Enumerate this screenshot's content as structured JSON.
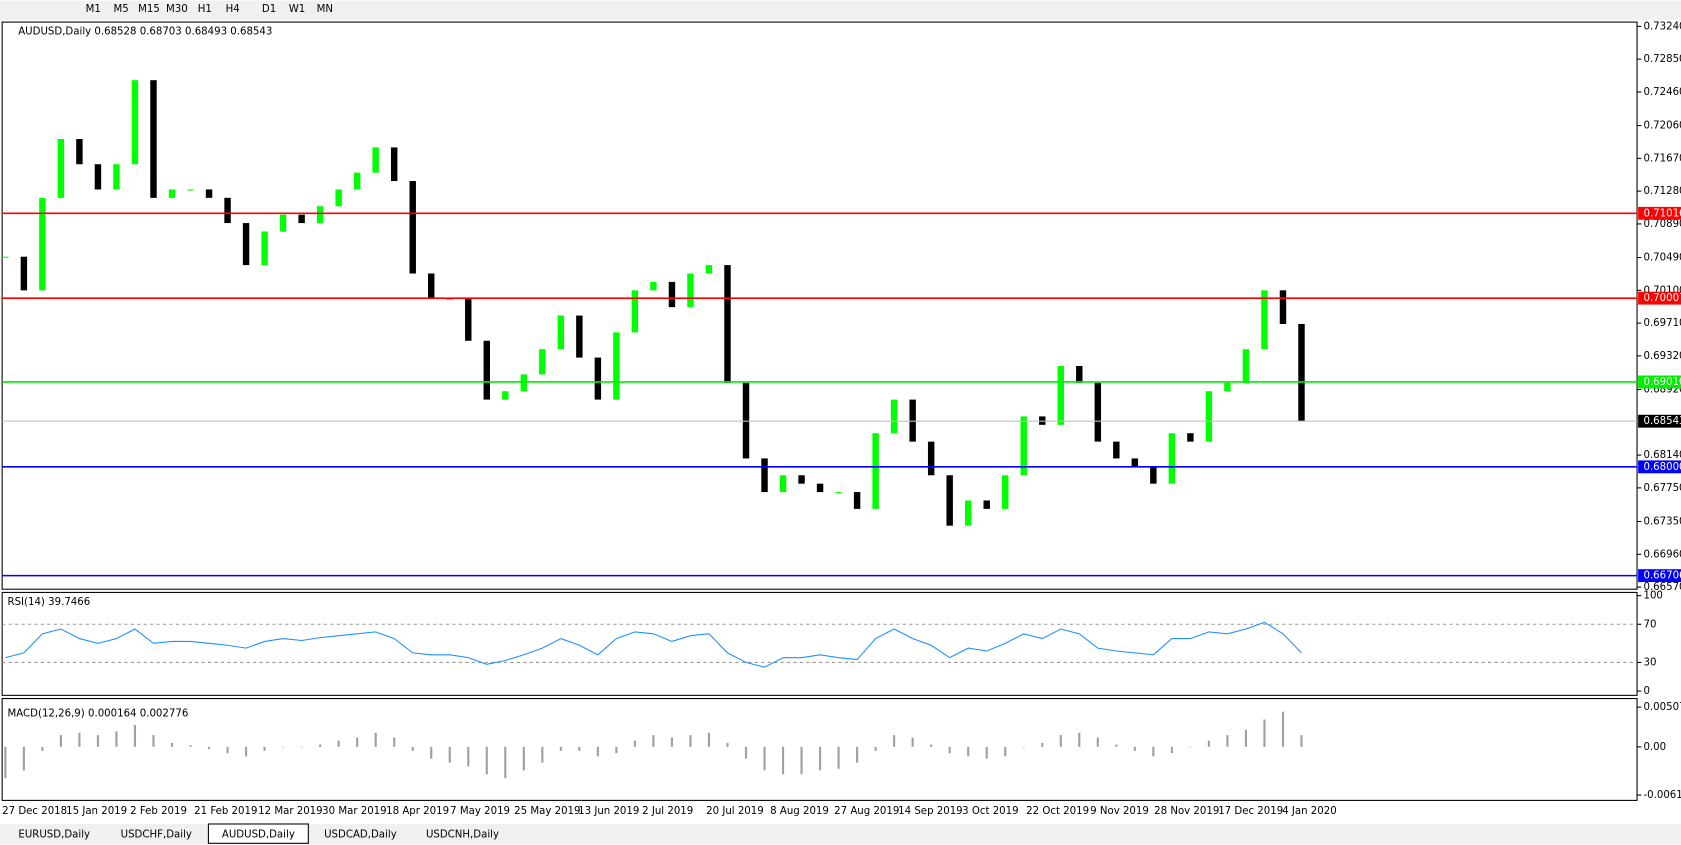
{
  "toolbar": {
    "timeframes": [
      "M1",
      "M5",
      "M15",
      "M30",
      "H1",
      "H4",
      "D1",
      "W1",
      "MN"
    ]
  },
  "chart_data": [
    {
      "type": "candlestick",
      "title": "AUDUSD,Daily  0.68528 0.68703 0.68493 0.68543",
      "values": [
        0.705,
        0.701,
        0.712,
        0.719,
        0.716,
        0.713,
        0.716,
        0.726,
        0.712,
        0.713,
        0.713,
        0.712,
        0.709,
        0.704,
        0.708,
        0.71,
        0.709,
        0.711,
        0.713,
        0.715,
        0.718,
        0.714,
        0.703,
        0.7,
        0.7,
        0.695,
        0.688,
        0.689,
        0.691,
        0.694,
        0.698,
        0.693,
        0.688,
        0.696,
        0.701,
        0.702,
        0.699,
        0.703,
        0.704,
        0.69,
        0.681,
        0.677,
        0.679,
        0.678,
        0.677,
        0.677,
        0.675,
        0.684,
        0.688,
        0.683,
        0.679,
        0.673,
        0.676,
        0.675,
        0.679,
        0.686,
        0.685,
        0.692,
        0.69,
        0.683,
        0.681,
        0.68,
        0.678,
        0.684,
        0.683,
        0.689,
        0.69,
        0.694,
        0.701,
        0.697,
        0.6854
      ],
      "up_color": "#00ff00",
      "down_color": "#000000",
      "ylim": [
        0.6657,
        0.7324
      ],
      "yticks": [
        {
          "value": 0.7324,
          "label": "0.73240"
        },
        {
          "value": 0.7285,
          "label": "0.72850"
        },
        {
          "value": 0.7246,
          "label": "0.72460"
        },
        {
          "value": 0.7206,
          "label": "0.72060"
        },
        {
          "value": 0.7167,
          "label": "0.71670"
        },
        {
          "value": 0.7128,
          "label": "0.71280"
        },
        {
          "value": 0.7089,
          "label": "0.70890"
        },
        {
          "value": 0.7049,
          "label": "0.70490"
        },
        {
          "value": 0.701,
          "label": "0.70100"
        },
        {
          "value": 0.6971,
          "label": "0.69710"
        },
        {
          "value": 0.6932,
          "label": "0.69320"
        },
        {
          "value": 0.6892,
          "label": "0.68920"
        },
        {
          "value": 0.6814,
          "label": "0.68140"
        },
        {
          "value": 0.6775,
          "label": "0.67750"
        },
        {
          "value": 0.6735,
          "label": "0.67350"
        },
        {
          "value": 0.6696,
          "label": "0.66960"
        },
        {
          "value": 0.6657,
          "label": "0.66570"
        }
      ],
      "levels": [
        {
          "value": 0.71016,
          "label": "0.71016",
          "color": "#ff0000"
        },
        {
          "value": 0.70007,
          "label": "0.70007",
          "color": "#ff0000"
        },
        {
          "value": 0.6901,
          "label": "0.69010",
          "color": "#00ee00"
        },
        {
          "value": 0.68,
          "label": "0.68000",
          "color": "#0000ff"
        },
        {
          "value": 0.66706,
          "label": "0.66706",
          "color": "#0000ff"
        }
      ],
      "last": 0.68543,
      "xticks": [
        "27 Dec 2018",
        "15 Jan 2019",
        "2 Feb 2019",
        "21 Feb 2019",
        "12 Mar 2019",
        "30 Mar 2019",
        "18 Apr 2019",
        "7 May 2019",
        "25 May 2019",
        "13 Jun 2019",
        "2 Jul 2019",
        "20 Jul 2019",
        "8 Aug 2019",
        "27 Aug 2019",
        "14 Sep 2019",
        "3 Oct 2019",
        "22 Oct 2019",
        "9 Nov 2019",
        "28 Nov 2019",
        "17 Dec 2019",
        "4 Jan 2020"
      ]
    },
    {
      "type": "line",
      "title": "RSI(14) 39.7466",
      "color": "#1e90ff",
      "values": [
        35,
        40,
        60,
        65,
        55,
        50,
        55,
        65,
        50,
        52,
        52,
        50,
        48,
        45,
        52,
        55,
        53,
        56,
        58,
        60,
        62,
        55,
        40,
        38,
        38,
        35,
        28,
        32,
        38,
        45,
        55,
        48,
        38,
        55,
        62,
        60,
        52,
        58,
        60,
        40,
        30,
        25,
        35,
        35,
        38,
        35,
        33,
        55,
        65,
        55,
        48,
        35,
        45,
        42,
        50,
        60,
        55,
        65,
        60,
        45,
        42,
        40,
        38,
        55,
        55,
        62,
        60,
        65,
        72,
        60,
        40
      ],
      "ylim": [
        0,
        100
      ],
      "yticks": [
        0,
        30,
        70,
        100
      ],
      "levels": [
        30,
        70
      ]
    },
    {
      "type": "bar",
      "title": "MACD(12,26,9) 0.000164 0.002776",
      "color": "#a0a0a0",
      "values": [
        -0.004,
        -0.003,
        -0.0005,
        0.0015,
        0.0018,
        0.0015,
        0.002,
        0.0028,
        0.0015,
        0.0005,
        0.0002,
        -0.0003,
        -0.0008,
        -0.0012,
        -0.0005,
        0,
        0,
        0.0003,
        0.0008,
        0.0012,
        0.0018,
        0.0012,
        -0.0005,
        -0.0015,
        -0.002,
        -0.0025,
        -0.0035,
        -0.004,
        -0.003,
        -0.002,
        -0.0005,
        -0.0005,
        -0.0012,
        -0.0008,
        0.0008,
        0.0015,
        0.0012,
        0.0015,
        0.0018,
        0.0005,
        -0.0015,
        -0.003,
        -0.0035,
        -0.0035,
        -0.003,
        -0.0028,
        -0.002,
        -0.0005,
        0.0015,
        0.0012,
        0.0003,
        -0.0008,
        -0.0012,
        -0.0015,
        -0.0012,
        0,
        0.0005,
        0.0015,
        0.0018,
        0.0012,
        0.0003,
        -0.0005,
        -0.0012,
        -0.0008,
        0,
        0.0008,
        0.0015,
        0.0022,
        0.0035,
        0.0045,
        0.0015
      ],
      "ylim": [
        -0.006148,
        0.005076
      ],
      "yticks": [
        0.005076,
        {
          "value": 0,
          "label": "0.00"
        },
        -0.006148
      ]
    }
  ],
  "tabs": {
    "items": [
      "EURUSD,Daily",
      "USDCHF,Daily",
      "AUDUSD,Daily",
      "USDCAD,Daily",
      "USDCNH,Daily"
    ],
    "active": 2
  }
}
